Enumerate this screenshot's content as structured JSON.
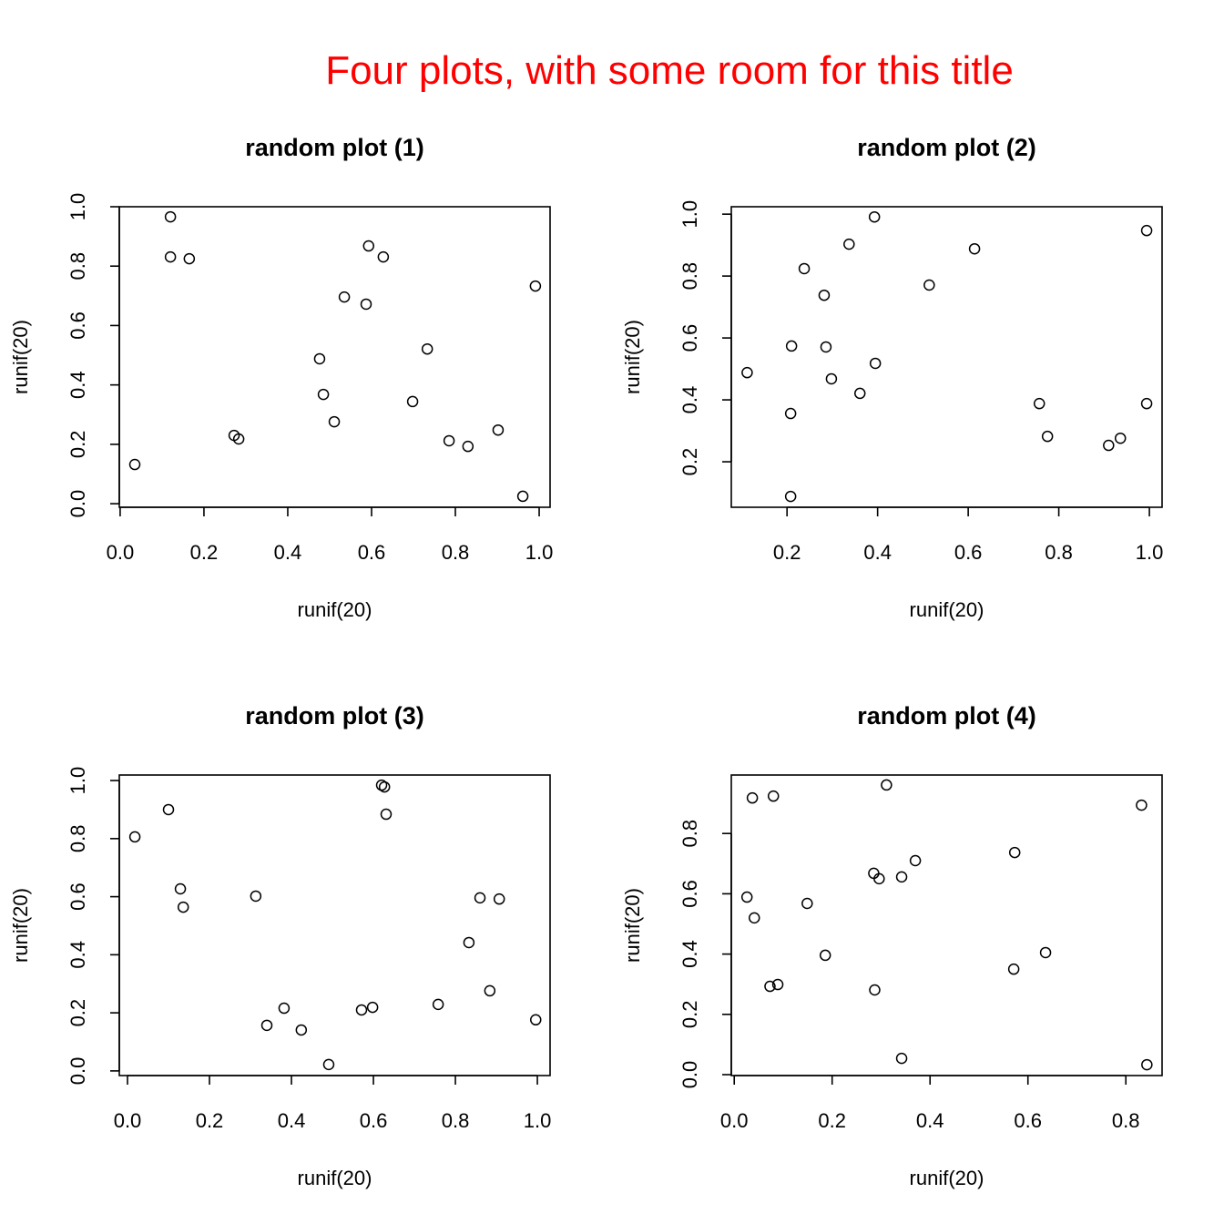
{
  "title": "Four plots, with some room for this title",
  "title_color": "#ff0000",
  "chart_data": [
    {
      "type": "scatter",
      "title": "random plot (1)",
      "xlabel": "runif(20)",
      "ylabel": "runif(20)",
      "xlim": [
        -0.002,
        1.026
      ],
      "ylim": [
        -0.012,
        1.0
      ],
      "xticks": [
        0.0,
        0.2,
        0.4,
        0.6,
        0.8,
        1.0
      ],
      "xtick_labels": [
        "0.0",
        "0.2",
        "0.4",
        "0.6",
        "0.8",
        "1.0"
      ],
      "yticks": [
        0.0,
        0.2,
        0.4,
        0.6,
        0.8,
        1.0
      ],
      "ytick_labels": [
        "0.0",
        "0.2",
        "0.4",
        "0.6",
        "0.8",
        "1.0"
      ],
      "grid": false,
      "marker": "open-circle",
      "x": [
        0.035,
        0.12,
        0.12,
        0.165,
        0.272,
        0.283,
        0.476,
        0.485,
        0.511,
        0.535,
        0.587,
        0.593,
        0.628,
        0.698,
        0.733,
        0.785,
        0.83,
        0.902,
        0.961,
        0.991
      ],
      "y": [
        0.132,
        0.966,
        0.831,
        0.825,
        0.23,
        0.218,
        0.488,
        0.368,
        0.276,
        0.696,
        0.672,
        0.868,
        0.831,
        0.344,
        0.521,
        0.212,
        0.193,
        0.248,
        0.025,
        0.733
      ]
    },
    {
      "type": "scatter",
      "title": "random plot (2)",
      "xlabel": "runif(20)",
      "ylabel": "runif(20)",
      "xlim": [
        0.077,
        1.028
      ],
      "ylim": [
        0.053,
        1.024
      ],
      "xticks": [
        0.2,
        0.4,
        0.6,
        0.8,
        1.0
      ],
      "xtick_labels": [
        "0.2",
        "0.4",
        "0.6",
        "0.8",
        "1.0"
      ],
      "yticks": [
        0.2,
        0.4,
        0.6,
        0.8,
        1.0
      ],
      "ytick_labels": [
        "0.2",
        "0.4",
        "0.6",
        "0.8",
        "1.0"
      ],
      "grid": false,
      "marker": "open-circle",
      "x": [
        0.112,
        0.208,
        0.208,
        0.21,
        0.238,
        0.282,
        0.286,
        0.298,
        0.337,
        0.361,
        0.393,
        0.395,
        0.514,
        0.614,
        0.757,
        0.775,
        0.91,
        0.936,
        0.994,
        0.994
      ],
      "y": [
        0.488,
        0.088,
        0.356,
        0.574,
        0.824,
        0.738,
        0.571,
        0.468,
        0.903,
        0.421,
        0.991,
        0.518,
        0.771,
        0.888,
        0.388,
        0.282,
        0.253,
        0.276,
        0.947,
        0.388
      ]
    },
    {
      "type": "scatter",
      "title": "random plot (3)",
      "xlabel": "runif(20)",
      "ylabel": "runif(20)",
      "xlim": [
        -0.02,
        1.031
      ],
      "ylim": [
        -0.016,
        1.019
      ],
      "xticks": [
        0.0,
        0.2,
        0.4,
        0.6,
        0.8,
        1.0
      ],
      "xtick_labels": [
        "0.0",
        "0.2",
        "0.4",
        "0.6",
        "0.8",
        "1.0"
      ],
      "yticks": [
        0.0,
        0.2,
        0.4,
        0.6,
        0.8,
        1.0
      ],
      "ytick_labels": [
        "0.0",
        "0.2",
        "0.4",
        "0.6",
        "0.8",
        "1.0"
      ],
      "grid": false,
      "marker": "open-circle",
      "x": [
        0.018,
        0.1,
        0.129,
        0.136,
        0.313,
        0.34,
        0.382,
        0.424,
        0.491,
        0.571,
        0.598,
        0.62,
        0.627,
        0.631,
        0.758,
        0.833,
        0.86,
        0.884,
        0.907,
        0.996
      ],
      "y": [
        0.806,
        0.9,
        0.627,
        0.564,
        0.602,
        0.157,
        0.216,
        0.141,
        0.022,
        0.21,
        0.219,
        0.984,
        0.978,
        0.884,
        0.229,
        0.442,
        0.596,
        0.276,
        0.592,
        0.176
      ]
    },
    {
      "type": "scatter",
      "title": "random plot (4)",
      "xlabel": "runif(20)",
      "ylabel": "runif(20)",
      "xlim": [
        -0.006,
        0.874
      ],
      "ylim": [
        -0.003,
        0.994
      ],
      "xticks": [
        0.0,
        0.2,
        0.4,
        0.6,
        0.8
      ],
      "xtick_labels": [
        "0.0",
        "0.2",
        "0.4",
        "0.6",
        "0.8"
      ],
      "yticks": [
        0.0,
        0.2,
        0.4,
        0.6,
        0.8
      ],
      "ytick_labels": [
        "0.0",
        "0.2",
        "0.4",
        "0.6",
        "0.8"
      ],
      "grid": false,
      "marker": "open-circle",
      "x": [
        0.026,
        0.037,
        0.041,
        0.073,
        0.08,
        0.089,
        0.149,
        0.186,
        0.285,
        0.287,
        0.296,
        0.311,
        0.342,
        0.342,
        0.37,
        0.573,
        0.571,
        0.636,
        0.832,
        0.843
      ],
      "y": [
        0.589,
        0.918,
        0.52,
        0.293,
        0.924,
        0.299,
        0.568,
        0.396,
        0.668,
        0.281,
        0.65,
        0.961,
        0.656,
        0.054,
        0.71,
        0.737,
        0.35,
        0.405,
        0.894,
        0.033
      ]
    }
  ]
}
